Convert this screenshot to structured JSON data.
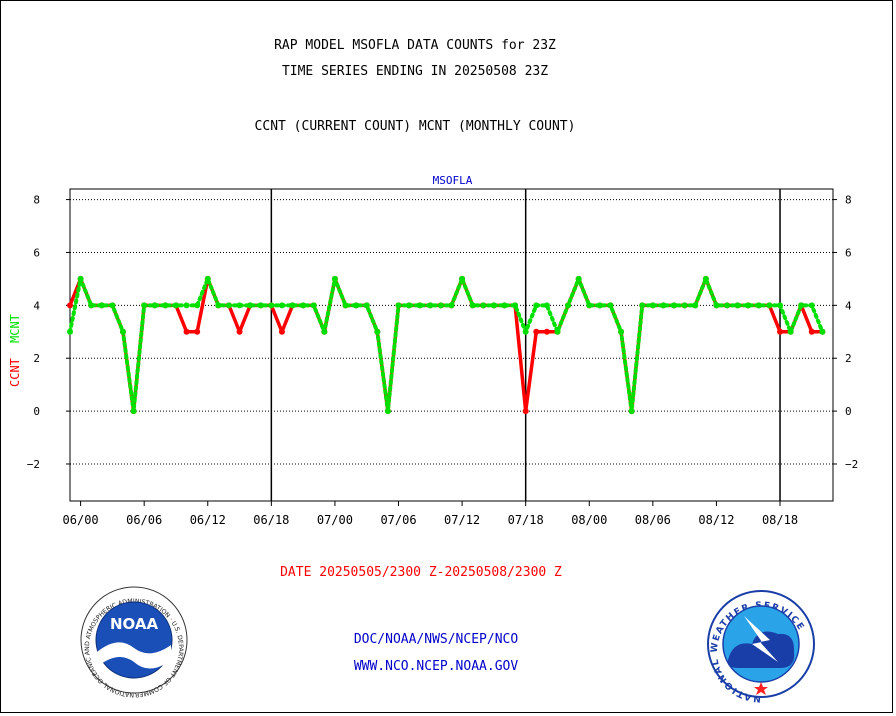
{
  "header": {
    "title_line1": "RAP MODEL MSOFLA DATA COUNTS for 23Z",
    "title_line2": "TIME SERIES ENDING IN 20250508 23Z",
    "title_line3": "CCNT (CURRENT COUNT) MCNT (MONTHLY COUNT)"
  },
  "footer": {
    "date_range": "DATE 20250505/2300 Z-20250508/2300 Z",
    "org_path": "DOC/NOAA/NWS/NCEP/NCO",
    "website": "WWW.NCO.NCEP.NOAA.GOV"
  },
  "logos": {
    "noaa_text": "NOAA",
    "noaa_ring": "NATIONAL OCEANIC AND ATMOSPHERIC ADMINISTRATION · U.S. DEPARTMENT OF COMMERCE ·",
    "nws_ring": "NATIONAL WEATHER SERVICE"
  },
  "colors": {
    "ccnt": "#ff0000",
    "mcnt": "#00e000",
    "station_label": "#0000cc",
    "footer_link": "#0000cc",
    "date_text": "#ff0000"
  },
  "chart_data": {
    "type": "line",
    "title": "MSOFLA",
    "ylabel_left_ccnt": "CCNT",
    "ylabel_left_mcnt": "MCNT",
    "ylim": [
      -3.4,
      8.4
    ],
    "yticks": [
      8,
      6,
      4,
      2,
      0,
      -2
    ],
    "ytick_labels": [
      "8",
      "6",
      "4",
      "2",
      "0",
      "−2"
    ],
    "x_start": 0,
    "x_end": 72,
    "xticks": [
      1,
      7,
      13,
      19,
      25,
      31,
      37,
      43,
      49,
      55,
      61,
      67
    ],
    "xtick_labels": [
      "06/00",
      "06/06",
      "06/12",
      "06/18",
      "07/00",
      "07/06",
      "07/12",
      "07/18",
      "08/00",
      "08/06",
      "08/12",
      "08/18"
    ],
    "day_boundaries": [
      19,
      43,
      67
    ],
    "grid": true,
    "series": [
      {
        "name": "CCNT",
        "color": "#ff0000",
        "style": "solid",
        "values": [
          4,
          5,
          4,
          4,
          4,
          3,
          0,
          4,
          4,
          4,
          4,
          3,
          3,
          5,
          4,
          4,
          3,
          4,
          4,
          4,
          3,
          4,
          4,
          4,
          3,
          5,
          4,
          4,
          4,
          3,
          0,
          4,
          4,
          4,
          4,
          4,
          4,
          5,
          4,
          4,
          4,
          4,
          4,
          0,
          3,
          3,
          3,
          4,
          5,
          4,
          4,
          4,
          3,
          0,
          4,
          4,
          4,
          4,
          4,
          4,
          5,
          4,
          4,
          4,
          4,
          4,
          4,
          3,
          3,
          4,
          3,
          3
        ]
      },
      {
        "name": "MCNT",
        "color": "#00e000",
        "style": "dotted",
        "values": [
          3,
          5,
          4,
          4,
          4,
          3,
          0,
          4,
          4,
          4,
          4,
          4,
          4,
          5,
          4,
          4,
          4,
          4,
          4,
          4,
          4,
          4,
          4,
          4,
          3,
          5,
          4,
          4,
          4,
          3,
          0,
          4,
          4,
          4,
          4,
          4,
          4,
          5,
          4,
          4,
          4,
          4,
          4,
          3,
          4,
          4,
          3,
          4,
          5,
          4,
          4,
          4,
          3,
          0,
          4,
          4,
          4,
          4,
          4,
          4,
          5,
          4,
          4,
          4,
          4,
          4,
          4,
          4,
          3,
          4,
          4,
          3
        ]
      }
    ]
  }
}
